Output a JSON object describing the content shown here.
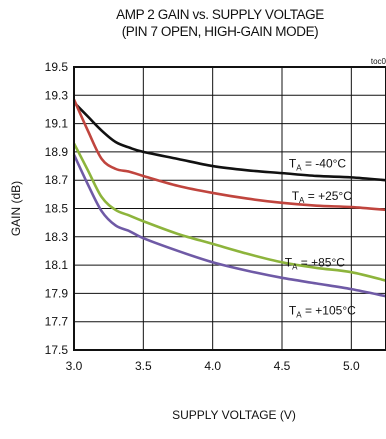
{
  "chart_data": {
    "type": "line",
    "title": "AMP 2 GAIN vs. SUPPLY VOLTAGE",
    "subtitle": "(PIN 7 OPEN, HIGH-GAIN MODE)",
    "tag": "toc0",
    "xlabel": "SUPPLY VOLTAGE (V)",
    "ylabel": "GAIN (dB)",
    "xlim": [
      3.0,
      5.25
    ],
    "ylim": [
      17.5,
      19.5
    ],
    "x_ticks": [
      "3.0",
      "3.5",
      "4.0",
      "4.5",
      "5.0"
    ],
    "y_ticks": [
      "17.5",
      "17.7",
      "17.9",
      "18.1",
      "18.3",
      "18.5",
      "18.7",
      "18.9",
      "19.1",
      "19.3",
      "19.5"
    ],
    "grid": true,
    "series": [
      {
        "name": "-40°C",
        "color": "#111111",
        "x": [
          3.0,
          3.1,
          3.2,
          3.3,
          3.4,
          3.5,
          3.75,
          4.0,
          4.25,
          4.5,
          4.75,
          5.0,
          5.25
        ],
        "y": [
          19.25,
          19.15,
          19.05,
          18.97,
          18.93,
          18.9,
          18.85,
          18.8,
          18.77,
          18.75,
          18.73,
          18.72,
          18.7
        ]
      },
      {
        "name": "+25°C",
        "color": "#c0453e",
        "x": [
          3.0,
          3.1,
          3.2,
          3.3,
          3.4,
          3.5,
          3.75,
          4.0,
          4.25,
          4.5,
          4.75,
          5.0,
          5.25
        ],
        "y": [
          19.27,
          19.05,
          18.85,
          18.78,
          18.76,
          18.73,
          18.66,
          18.61,
          18.57,
          18.54,
          18.52,
          18.51,
          18.49
        ]
      },
      {
        "name": "+85°C",
        "color": "#8db43c",
        "x": [
          3.0,
          3.1,
          3.2,
          3.3,
          3.4,
          3.5,
          3.75,
          4.0,
          4.25,
          4.5,
          4.75,
          5.0,
          5.25
        ],
        "y": [
          18.96,
          18.77,
          18.58,
          18.49,
          18.45,
          18.41,
          18.32,
          18.25,
          18.18,
          18.12,
          18.08,
          18.05,
          17.99
        ]
      },
      {
        "name": "+105°C",
        "color": "#6f5aa6",
        "x": [
          3.0,
          3.1,
          3.2,
          3.3,
          3.4,
          3.5,
          3.75,
          4.0,
          4.25,
          4.5,
          4.75,
          5.0,
          5.25
        ],
        "y": [
          18.88,
          18.67,
          18.48,
          18.38,
          18.34,
          18.29,
          18.2,
          18.12,
          18.06,
          18.01,
          17.97,
          17.93,
          17.88
        ]
      }
    ],
    "annotations": [
      {
        "series": 0,
        "main": "T",
        "sub": "A",
        "text": " = -40°C",
        "x": 4.55,
        "y": 18.79
      },
      {
        "series": 1,
        "main": "T",
        "sub": "A",
        "text": " = +25°C",
        "x": 4.57,
        "y": 18.56
      },
      {
        "series": 2,
        "main": "T",
        "sub": "A",
        "text": " = +85°C",
        "x": 4.52,
        "y": 18.09
      },
      {
        "series": 3,
        "main": "T",
        "sub": "A",
        "text": " = +105°C",
        "x": 4.55,
        "y": 17.75
      }
    ]
  }
}
